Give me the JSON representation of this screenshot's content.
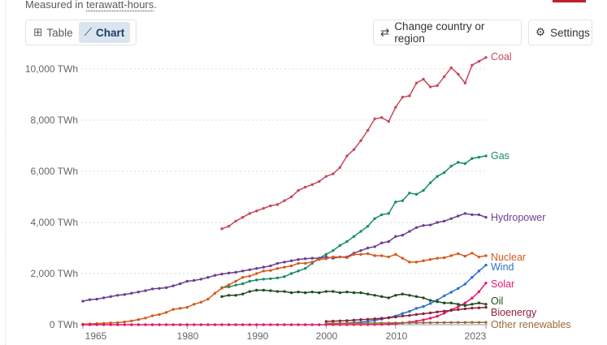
{
  "header": {
    "subtitle_prefix": "Measured in ",
    "subtitle_link": "terawatt-hours",
    "subtitle_suffix": "."
  },
  "toolbar": {
    "table_label": "Table",
    "chart_label": "Chart",
    "change_region_label": "Change country or region",
    "settings_label": "Settings"
  },
  "chart_data": {
    "type": "line",
    "unit": "TWh",
    "xlim": [
      1965,
      2023
    ],
    "ylim": [
      0,
      10500
    ],
    "x_ticks": [
      "1965",
      "1980",
      "1990",
      "2000",
      "2010",
      "2023"
    ],
    "y_ticks": [
      {
        "v": 0,
        "label": "0 TWh"
      },
      {
        "v": 2000,
        "label": "2,000 TWh"
      },
      {
        "v": 4000,
        "label": "4,000 TWh"
      },
      {
        "v": 6000,
        "label": "6,000 TWh"
      },
      {
        "v": 8000,
        "label": "8,000 TWh"
      },
      {
        "v": 10000,
        "label": "10,000 TWh"
      }
    ],
    "series": [
      {
        "name": "Coal",
        "color": "#c8485a",
        "start": 1985,
        "values": [
          3750,
          3850,
          4050,
          4200,
          4350,
          4450,
          4550,
          4650,
          4700,
          4850,
          5000,
          5250,
          5380,
          5480,
          5600,
          5800,
          5900,
          6150,
          6600,
          6850,
          7200,
          7600,
          8050,
          8100,
          7950,
          8500,
          8900,
          8950,
          9450,
          9600,
          9300,
          9350,
          9700,
          10050,
          9800,
          9450,
          10150,
          10300,
          10450
        ]
      },
      {
        "name": "Gas",
        "color": "#1a8c68",
        "start": 1985,
        "values": [
          1450,
          1480,
          1550,
          1600,
          1700,
          1750,
          1780,
          1800,
          1830,
          1880,
          2000,
          2100,
          2200,
          2400,
          2600,
          2750,
          2900,
          3100,
          3250,
          3450,
          3650,
          3850,
          4150,
          4300,
          4350,
          4800,
          4850,
          5150,
          5100,
          5250,
          5550,
          5800,
          5950,
          6200,
          6350,
          6300,
          6500,
          6550,
          6600
        ]
      },
      {
        "name": "Hydropower",
        "color": "#6d3e91",
        "start": 1965,
        "values": [
          920,
          980,
          1000,
          1050,
          1100,
          1150,
          1180,
          1230,
          1280,
          1330,
          1400,
          1420,
          1450,
          1520,
          1600,
          1700,
          1730,
          1780,
          1850,
          1930,
          1980,
          2020,
          2050,
          2100,
          2150,
          2200,
          2250,
          2300,
          2400,
          2450,
          2500,
          2550,
          2580,
          2600,
          2600,
          2650,
          2600,
          2650,
          2650,
          2800,
          2900,
          3000,
          3050,
          3200,
          3250,
          3450,
          3500,
          3650,
          3800,
          3880,
          3900,
          4000,
          4050,
          4150,
          4250,
          4350,
          4300,
          4300,
          4200
        ]
      },
      {
        "name": "Nuclear",
        "color": "#d35b1e",
        "start": 1965,
        "values": [
          20,
          30,
          40,
          55,
          70,
          80,
          110,
          150,
          200,
          260,
          350,
          400,
          480,
          600,
          640,
          680,
          800,
          880,
          1000,
          1230,
          1430,
          1560,
          1700,
          1850,
          1900,
          2000,
          2100,
          2120,
          2200,
          2250,
          2300,
          2400,
          2400,
          2450,
          2550,
          2580,
          2650,
          2650,
          2620,
          2750,
          2750,
          2780,
          2700,
          2700,
          2650,
          2750,
          2600,
          2450,
          2450,
          2500,
          2550,
          2600,
          2620,
          2700,
          2780,
          2680,
          2800,
          2650,
          2700
        ]
      },
      {
        "name": "Wind",
        "color": "#2c6fd0",
        "start": 2000,
        "values": [
          30,
          40,
          50,
          60,
          85,
          100,
          130,
          170,
          220,
          280,
          340,
          440,
          520,
          640,
          710,
          830,
          960,
          1130,
          1270,
          1420,
          1590,
          1850,
          2100,
          2330
        ]
      },
      {
        "name": "Solar",
        "color": "#e6186c",
        "start": 1965,
        "values": [
          0,
          0,
          0,
          0,
          0,
          0,
          0,
          0,
          0,
          0,
          0,
          0,
          0,
          0,
          0,
          0,
          0,
          0,
          0,
          0,
          0,
          0,
          0,
          0,
          0,
          0,
          0,
          0,
          0,
          0,
          0,
          0,
          0,
          0,
          0,
          1,
          1,
          1,
          1,
          2,
          3,
          4,
          6,
          12,
          20,
          32,
          65,
          100,
          135,
          190,
          255,
          330,
          450,
          580,
          700,
          850,
          1040,
          1290,
          1630
        ]
      },
      {
        "name": "Oil",
        "color": "#1d4d1d",
        "start": 1985,
        "values": [
          1100,
          1150,
          1150,
          1200,
          1300,
          1350,
          1350,
          1330,
          1300,
          1300,
          1250,
          1280,
          1250,
          1280,
          1250,
          1300,
          1300,
          1250,
          1280,
          1250,
          1250,
          1200,
          1150,
          1100,
          1050,
          1150,
          1200,
          1150,
          1100,
          1050,
          950,
          900,
          850,
          850,
          800,
          750,
          800,
          850,
          800
        ]
      },
      {
        "name": "Bioenergy",
        "color": "#8c2037",
        "start": 2000,
        "values": [
          130,
          140,
          150,
          160,
          180,
          200,
          210,
          230,
          250,
          270,
          300,
          340,
          360,
          400,
          430,
          460,
          500,
          530,
          560,
          590,
          620,
          650,
          660,
          680
        ]
      },
      {
        "name": "Other renewables",
        "color": "#9a6a3a",
        "start": 2000,
        "values": [
          52,
          53,
          55,
          56,
          58,
          60,
          62,
          64,
          65,
          67,
          70,
          72,
          74,
          76,
          78,
          80,
          82,
          84,
          86,
          88,
          89,
          90,
          90,
          92
        ]
      }
    ]
  }
}
